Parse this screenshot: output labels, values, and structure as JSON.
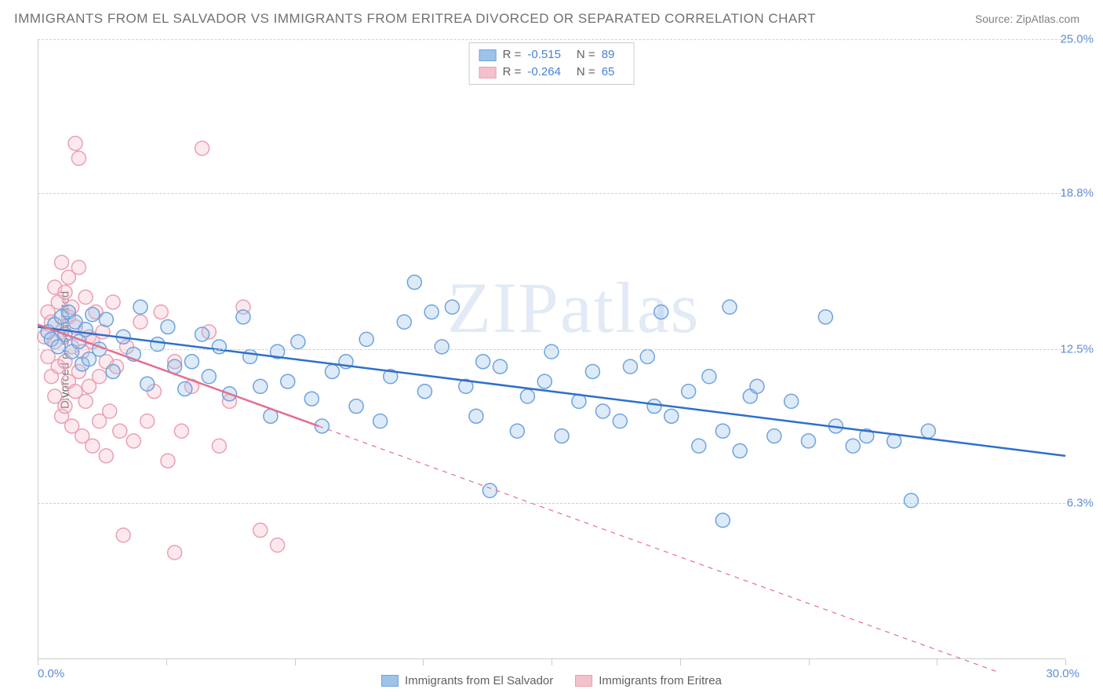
{
  "title": "IMMIGRANTS FROM EL SALVADOR VS IMMIGRANTS FROM ERITREA DIVORCED OR SEPARATED CORRELATION CHART",
  "source": "Source: ZipAtlas.com",
  "ylabel": "Divorced or Separated",
  "watermark_a": "ZIP",
  "watermark_b": "atlas",
  "chart": {
    "type": "scatter",
    "xlim": [
      0,
      30
    ],
    "ylim": [
      0,
      25
    ],
    "x_min_label": "0.0%",
    "x_max_label": "30.0%",
    "y_ticks": [
      6.3,
      12.5,
      18.8,
      25.0
    ],
    "y_tick_labels": [
      "6.3%",
      "12.5%",
      "18.8%",
      "25.0%"
    ],
    "x_tick_positions": [
      0,
      3.75,
      7.5,
      11.25,
      15,
      18.75,
      22.5,
      26.25,
      30
    ],
    "background_color": "#ffffff",
    "grid_color": "#d0d0d0",
    "axis_color": "#cccccc",
    "marker_radius": 9,
    "marker_stroke_width": 1.5,
    "marker_fill_opacity": 0.35,
    "series": [
      {
        "name": "Immigrants from El Salvador",
        "color_fill": "#9fc2ea",
        "color_stroke": "#6fa3dd",
        "line_color": "#2f6fc9",
        "line_width": 2.5,
        "R": "-0.515",
        "N": "89",
        "trend": {
          "x1": 0,
          "y1": 13.4,
          "x2": 30,
          "y2": 8.2,
          "solid_until_x": 30
        },
        "points": [
          [
            0.3,
            13.2
          ],
          [
            0.4,
            12.9
          ],
          [
            0.5,
            13.5
          ],
          [
            0.6,
            12.6
          ],
          [
            0.7,
            13.8
          ],
          [
            0.8,
            13.1
          ],
          [
            0.9,
            14.0
          ],
          [
            1.0,
            12.4
          ],
          [
            1.1,
            13.6
          ],
          [
            1.2,
            12.8
          ],
          [
            1.3,
            11.9
          ],
          [
            1.4,
            13.3
          ],
          [
            1.5,
            12.1
          ],
          [
            1.6,
            13.9
          ],
          [
            1.8,
            12.5
          ],
          [
            2.0,
            13.7
          ],
          [
            2.2,
            11.6
          ],
          [
            2.5,
            13.0
          ],
          [
            2.8,
            12.3
          ],
          [
            3.0,
            14.2
          ],
          [
            3.2,
            11.1
          ],
          [
            3.5,
            12.7
          ],
          [
            3.8,
            13.4
          ],
          [
            4.0,
            11.8
          ],
          [
            4.3,
            10.9
          ],
          [
            4.5,
            12.0
          ],
          [
            4.8,
            13.1
          ],
          [
            5.0,
            11.4
          ],
          [
            5.3,
            12.6
          ],
          [
            5.6,
            10.7
          ],
          [
            6.0,
            13.8
          ],
          [
            6.2,
            12.2
          ],
          [
            6.5,
            11.0
          ],
          [
            6.8,
            9.8
          ],
          [
            7.0,
            12.4
          ],
          [
            7.3,
            11.2
          ],
          [
            7.6,
            12.8
          ],
          [
            8.0,
            10.5
          ],
          [
            8.3,
            9.4
          ],
          [
            8.6,
            11.6
          ],
          [
            9.0,
            12.0
          ],
          [
            9.3,
            10.2
          ],
          [
            9.6,
            12.9
          ],
          [
            10.0,
            9.6
          ],
          [
            10.3,
            11.4
          ],
          [
            10.7,
            13.6
          ],
          [
            11.0,
            15.2
          ],
          [
            11.3,
            10.8
          ],
          [
            11.5,
            14.0
          ],
          [
            11.8,
            12.6
          ],
          [
            12.1,
            14.2
          ],
          [
            12.5,
            11.0
          ],
          [
            12.8,
            9.8
          ],
          [
            13.0,
            12.0
          ],
          [
            13.2,
            6.8
          ],
          [
            13.5,
            11.8
          ],
          [
            14.0,
            9.2
          ],
          [
            14.3,
            10.6
          ],
          [
            14.8,
            11.2
          ],
          [
            15.0,
            12.4
          ],
          [
            15.3,
            9.0
          ],
          [
            15.8,
            10.4
          ],
          [
            16.2,
            11.6
          ],
          [
            16.5,
            10.0
          ],
          [
            17.0,
            9.6
          ],
          [
            17.3,
            11.8
          ],
          [
            17.8,
            12.2
          ],
          [
            18.0,
            10.2
          ],
          [
            18.2,
            14.0
          ],
          [
            18.5,
            9.8
          ],
          [
            19.0,
            10.8
          ],
          [
            19.3,
            8.6
          ],
          [
            19.6,
            11.4
          ],
          [
            20.0,
            9.2
          ],
          [
            20.0,
            5.6
          ],
          [
            20.2,
            14.2
          ],
          [
            20.5,
            8.4
          ],
          [
            20.8,
            10.6
          ],
          [
            21.0,
            11.0
          ],
          [
            21.5,
            9.0
          ],
          [
            22.0,
            10.4
          ],
          [
            22.5,
            8.8
          ],
          [
            23.0,
            13.8
          ],
          [
            23.3,
            9.4
          ],
          [
            23.8,
            8.6
          ],
          [
            24.2,
            9.0
          ],
          [
            25.0,
            8.8
          ],
          [
            25.5,
            6.4
          ],
          [
            26.0,
            9.2
          ]
        ]
      },
      {
        "name": "Immigrants from Eritrea",
        "color_fill": "#f4c0cc",
        "color_stroke": "#eb9fb2",
        "line_color": "#e36f8f",
        "line_width": 2.5,
        "R": "-0.264",
        "N": "65",
        "trend": {
          "x1": 0,
          "y1": 13.5,
          "x2": 28,
          "y2": -0.5,
          "solid_until_x": 8.2
        },
        "points": [
          [
            0.2,
            13.0
          ],
          [
            0.3,
            12.2
          ],
          [
            0.3,
            14.0
          ],
          [
            0.4,
            11.4
          ],
          [
            0.4,
            13.6
          ],
          [
            0.5,
            15.0
          ],
          [
            0.5,
            12.8
          ],
          [
            0.5,
            10.6
          ],
          [
            0.6,
            14.4
          ],
          [
            0.6,
            11.8
          ],
          [
            0.7,
            13.2
          ],
          [
            0.7,
            16.0
          ],
          [
            0.7,
            9.8
          ],
          [
            0.8,
            12.0
          ],
          [
            0.8,
            14.8
          ],
          [
            0.8,
            10.2
          ],
          [
            0.9,
            13.8
          ],
          [
            0.9,
            11.2
          ],
          [
            0.9,
            15.4
          ],
          [
            1.0,
            12.6
          ],
          [
            1.0,
            9.4
          ],
          [
            1.0,
            14.2
          ],
          [
            1.1,
            10.8
          ],
          [
            1.1,
            13.4
          ],
          [
            1.1,
            20.8
          ],
          [
            1.2,
            11.6
          ],
          [
            1.2,
            15.8
          ],
          [
            1.2,
            20.2
          ],
          [
            1.3,
            12.4
          ],
          [
            1.3,
            9.0
          ],
          [
            1.4,
            14.6
          ],
          [
            1.4,
            10.4
          ],
          [
            1.5,
            13.0
          ],
          [
            1.5,
            11.0
          ],
          [
            1.6,
            8.6
          ],
          [
            1.6,
            12.8
          ],
          [
            1.7,
            14.0
          ],
          [
            1.8,
            9.6
          ],
          [
            1.8,
            11.4
          ],
          [
            1.9,
            13.2
          ],
          [
            2.0,
            8.2
          ],
          [
            2.0,
            12.0
          ],
          [
            2.1,
            10.0
          ],
          [
            2.2,
            14.4
          ],
          [
            2.3,
            11.8
          ],
          [
            2.4,
            9.2
          ],
          [
            2.5,
            5.0
          ],
          [
            2.6,
            12.6
          ],
          [
            2.8,
            8.8
          ],
          [
            3.0,
            13.6
          ],
          [
            3.2,
            9.6
          ],
          [
            3.4,
            10.8
          ],
          [
            3.6,
            14.0
          ],
          [
            3.8,
            8.0
          ],
          [
            4.0,
            12.0
          ],
          [
            4.0,
            4.3
          ],
          [
            4.2,
            9.2
          ],
          [
            4.5,
            11.0
          ],
          [
            4.8,
            20.6
          ],
          [
            5.0,
            13.2
          ],
          [
            5.3,
            8.6
          ],
          [
            5.6,
            10.4
          ],
          [
            6.0,
            14.2
          ],
          [
            6.5,
            5.2
          ],
          [
            7.0,
            4.6
          ]
        ]
      }
    ]
  },
  "legend": {
    "r_label": "R  =",
    "n_label": "N  ="
  }
}
